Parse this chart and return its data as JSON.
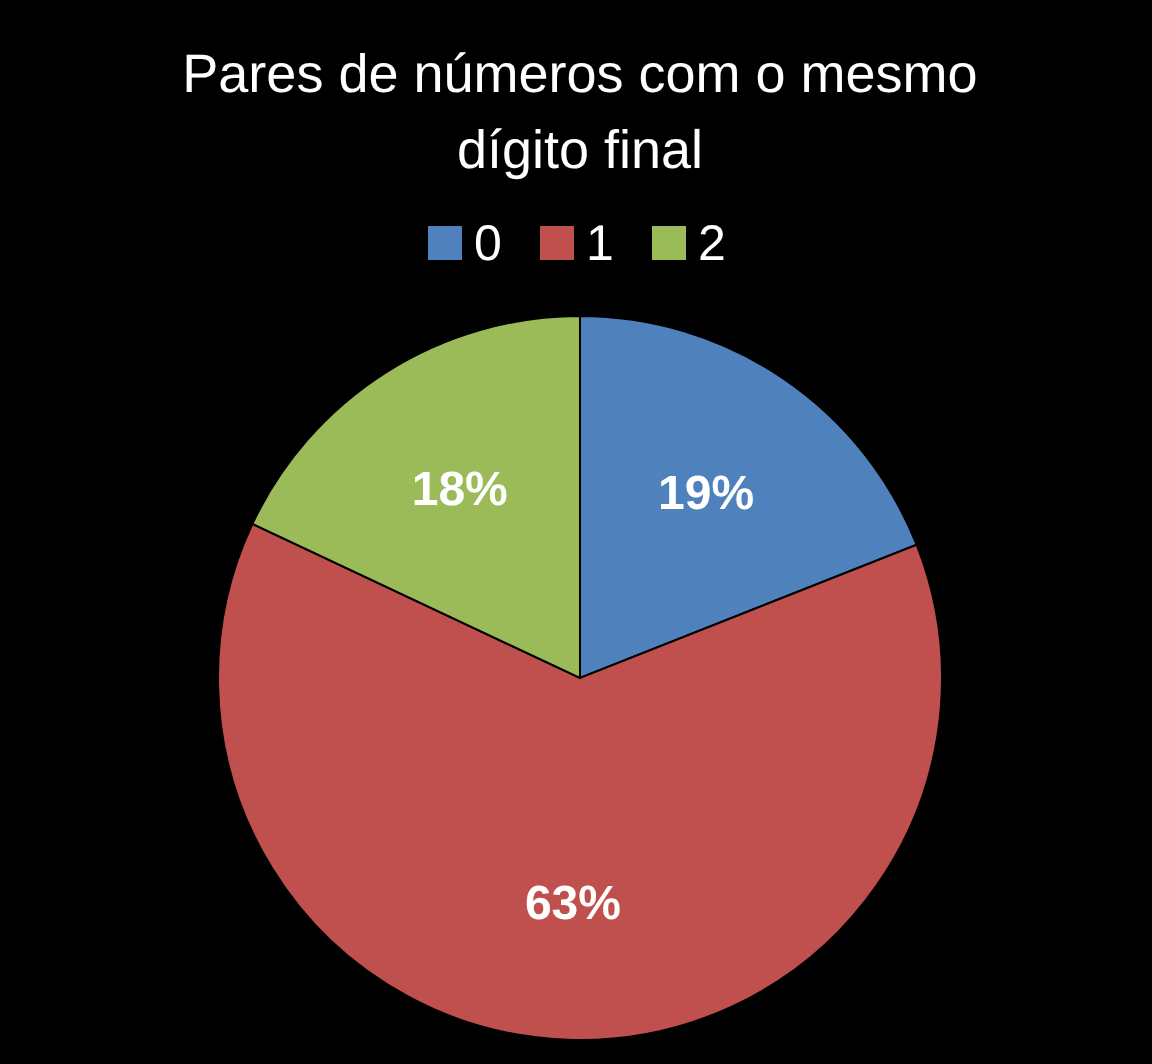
{
  "chart_data": {
    "type": "pie",
    "title": "Pares de números com o mesmo dígito final",
    "categories": [
      "0",
      "1",
      "2"
    ],
    "values": [
      19,
      63,
      18
    ],
    "colors": [
      "#4f81bd",
      "#c0504d",
      "#9bbb59"
    ],
    "value_labels": [
      "19%",
      "63%",
      "18%"
    ],
    "legend": "top"
  }
}
